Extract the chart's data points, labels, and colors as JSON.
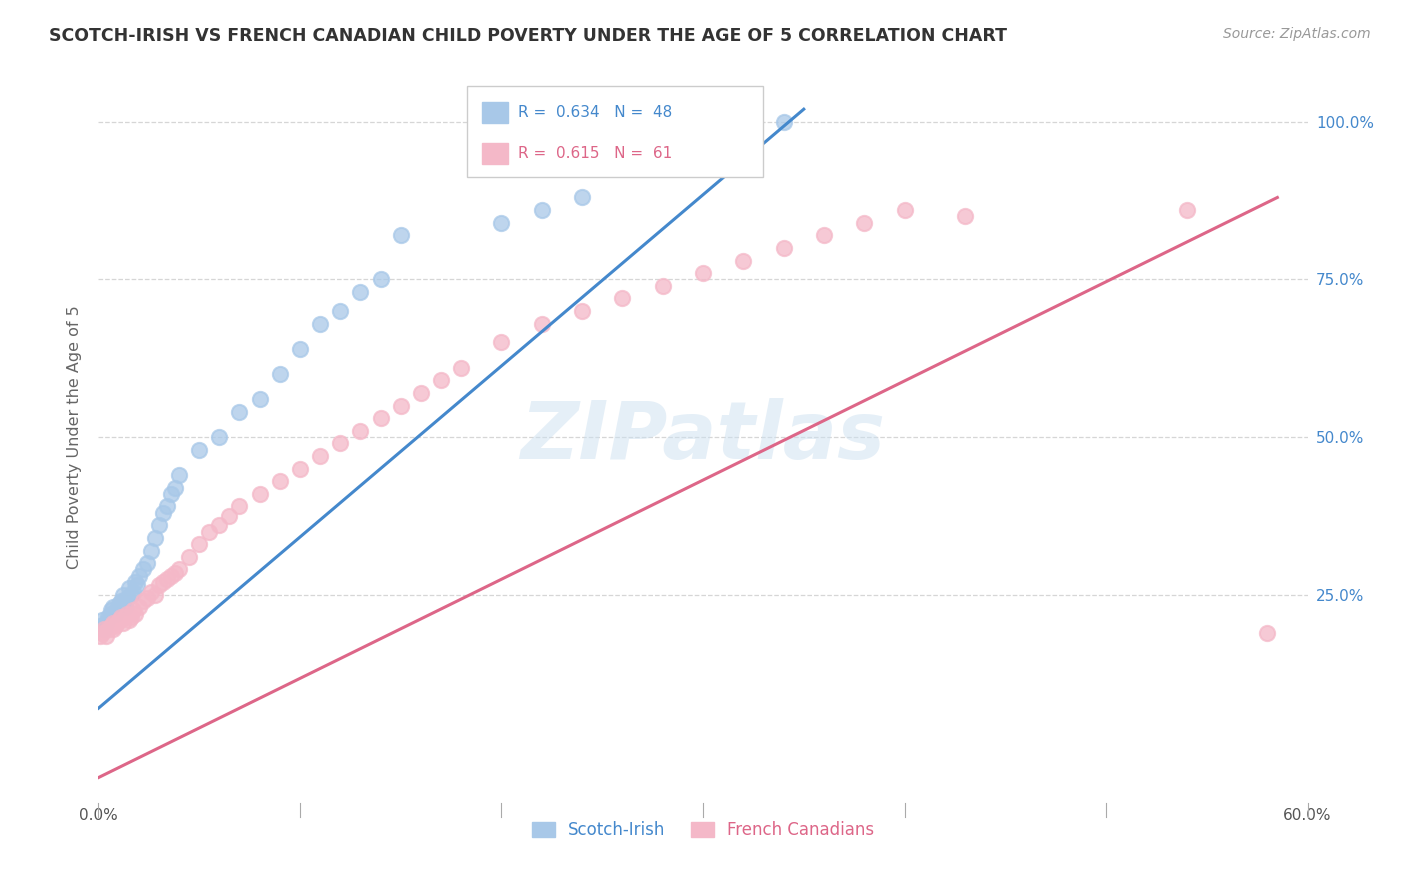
{
  "title": "SCOTCH-IRISH VS FRENCH CANADIAN CHILD POVERTY UNDER THE AGE OF 5 CORRELATION CHART",
  "source": "Source: ZipAtlas.com",
  "ylabel": "Child Poverty Under the Age of 5",
  "watermark": "ZIPatlas",
  "legend_blue_label": "Scotch-Irish",
  "legend_pink_label": "French Canadians",
  "blue_R": 0.634,
  "blue_N": 48,
  "pink_R": 0.615,
  "pink_N": 61,
  "blue_color": "#a8c8e8",
  "pink_color": "#f4b8c8",
  "blue_line_color": "#4488cc",
  "pink_line_color": "#dd6688",
  "blue_scatter_x": [
    0.001,
    0.002,
    0.003,
    0.004,
    0.005,
    0.006,
    0.006,
    0.007,
    0.008,
    0.009,
    0.01,
    0.011,
    0.012,
    0.013,
    0.014,
    0.015,
    0.016,
    0.017,
    0.018,
    0.019,
    0.02,
    0.022,
    0.024,
    0.026,
    0.028,
    0.03,
    0.032,
    0.034,
    0.036,
    0.038,
    0.04,
    0.05,
    0.06,
    0.07,
    0.08,
    0.09,
    0.1,
    0.11,
    0.12,
    0.13,
    0.14,
    0.15,
    0.2,
    0.22,
    0.24,
    0.28,
    0.32,
    0.34
  ],
  "blue_scatter_y": [
    0.2,
    0.21,
    0.195,
    0.205,
    0.215,
    0.22,
    0.225,
    0.23,
    0.22,
    0.225,
    0.235,
    0.24,
    0.25,
    0.23,
    0.245,
    0.26,
    0.25,
    0.255,
    0.27,
    0.265,
    0.28,
    0.29,
    0.3,
    0.32,
    0.34,
    0.36,
    0.38,
    0.39,
    0.41,
    0.42,
    0.44,
    0.48,
    0.5,
    0.54,
    0.56,
    0.6,
    0.64,
    0.68,
    0.7,
    0.73,
    0.75,
    0.82,
    0.84,
    0.86,
    0.88,
    0.95,
    0.99,
    1.0
  ],
  "pink_scatter_x": [
    0.001,
    0.002,
    0.003,
    0.004,
    0.005,
    0.006,
    0.007,
    0.007,
    0.008,
    0.009,
    0.01,
    0.011,
    0.012,
    0.013,
    0.014,
    0.015,
    0.016,
    0.017,
    0.018,
    0.02,
    0.022,
    0.024,
    0.026,
    0.028,
    0.03,
    0.032,
    0.034,
    0.036,
    0.038,
    0.04,
    0.045,
    0.05,
    0.055,
    0.06,
    0.065,
    0.07,
    0.08,
    0.09,
    0.1,
    0.11,
    0.12,
    0.13,
    0.14,
    0.15,
    0.16,
    0.17,
    0.18,
    0.2,
    0.22,
    0.24,
    0.26,
    0.28,
    0.3,
    0.32,
    0.34,
    0.36,
    0.38,
    0.4,
    0.43,
    0.54,
    0.58
  ],
  "pink_scatter_y": [
    0.185,
    0.19,
    0.195,
    0.185,
    0.195,
    0.2,
    0.195,
    0.205,
    0.2,
    0.205,
    0.21,
    0.215,
    0.205,
    0.215,
    0.22,
    0.21,
    0.215,
    0.225,
    0.22,
    0.23,
    0.24,
    0.245,
    0.255,
    0.25,
    0.265,
    0.27,
    0.275,
    0.28,
    0.285,
    0.29,
    0.31,
    0.33,
    0.35,
    0.36,
    0.375,
    0.39,
    0.41,
    0.43,
    0.45,
    0.47,
    0.49,
    0.51,
    0.53,
    0.55,
    0.57,
    0.59,
    0.61,
    0.65,
    0.68,
    0.7,
    0.72,
    0.74,
    0.76,
    0.78,
    0.8,
    0.82,
    0.84,
    0.86,
    0.85,
    0.86,
    0.19
  ],
  "blue_line_x": [
    0.0,
    0.35
  ],
  "blue_line_y": [
    0.07,
    1.02
  ],
  "pink_line_x": [
    0.0,
    0.585
  ],
  "pink_line_y": [
    -0.04,
    0.88
  ],
  "xmin": 0.0,
  "xmax": 0.6,
  "ymin": -0.08,
  "ymax": 1.08,
  "ytick_vals": [
    0.25,
    0.5,
    0.75,
    1.0
  ],
  "ytick_labels": [
    "25.0%",
    "50.0%",
    "75.0%",
    "100.0%"
  ],
  "xtick_vals": [
    0.0,
    0.1,
    0.2,
    0.3,
    0.4,
    0.5,
    0.6
  ],
  "background_color": "#ffffff",
  "grid_color": "#cccccc",
  "title_color": "#333333",
  "source_color": "#999999",
  "ylabel_color": "#666666"
}
